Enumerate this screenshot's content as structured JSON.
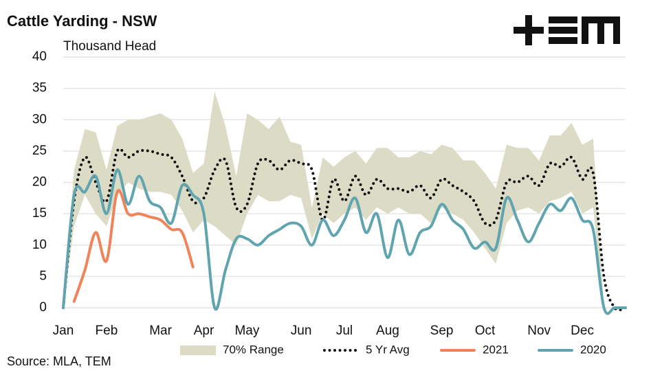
{
  "chart_data": {
    "type": "line",
    "title": "Cattle Yarding - NSW",
    "subtitle": "Thousand Head",
    "source": "Source: MLA, TEM",
    "categories": [
      "Jan",
      null,
      null,
      null,
      "Feb",
      null,
      null,
      null,
      null,
      "Mar",
      null,
      null,
      null,
      "Apr",
      null,
      null,
      null,
      "May",
      null,
      null,
      null,
      null,
      "Jun",
      null,
      null,
      null,
      "Jul",
      null,
      null,
      null,
      "Aug",
      null,
      null,
      null,
      null,
      "Sep",
      null,
      null,
      null,
      "Oct",
      null,
      null,
      null,
      null,
      "Nov",
      null,
      null,
      null,
      "Dec",
      null,
      null,
      null,
      null
    ],
    "ylim": [
      0,
      40
    ],
    "yticks": [
      0,
      5,
      10,
      15,
      20,
      25,
      30,
      35,
      40
    ],
    "grid": true,
    "legend": "bottom",
    "series": [
      {
        "name": "70% Range",
        "color": "#dcdcc6",
        "kind": "range",
        "upper": [
          0,
          22,
          28.5,
          28,
          22,
          29,
          30,
          30,
          30.5,
          31,
          30,
          27,
          21.5,
          23,
          34.5,
          29,
          21,
          31,
          30,
          28.5,
          30.5,
          26.5,
          26,
          16,
          24,
          22.5,
          24,
          25,
          23,
          25.5,
          25.5,
          24,
          24,
          25,
          24.5,
          26,
          25.5,
          23.5,
          23.5,
          21.5,
          19,
          26,
          25.5,
          25.5,
          23.5,
          27.5,
          27.5,
          29.5,
          26,
          27,
          0,
          0,
          0
        ],
        "lower": [
          0,
          13,
          18,
          15,
          13,
          18,
          20,
          19,
          18.5,
          18.5,
          18,
          15.5,
          12,
          14,
          13,
          11.5,
          10,
          15,
          18,
          17,
          17,
          18,
          17.5,
          11,
          15,
          13.5,
          15,
          16,
          14,
          16,
          15,
          16,
          15,
          15,
          13.5,
          16,
          15,
          14,
          12,
          9.5,
          7,
          13.5,
          15.5,
          16,
          15,
          17,
          17.5,
          18.5,
          15,
          16,
          0,
          0,
          0
        ]
      },
      {
        "name": "5 Yr Avg",
        "color": "#111111",
        "kind": "dotted",
        "values": [
          0,
          17,
          24,
          20,
          17,
          25,
          24,
          25,
          25,
          24.5,
          24,
          21,
          17,
          17.5,
          22,
          23.5,
          16,
          16.5,
          23,
          23.5,
          22,
          23.5,
          23,
          22,
          14,
          20.5,
          17,
          21,
          18,
          20.5,
          19,
          19,
          18.5,
          19.5,
          17.5,
          20.5,
          19.5,
          18.5,
          17,
          13.5,
          14,
          20,
          20,
          21,
          19.5,
          23,
          22.5,
          24,
          20.5,
          21.5,
          5,
          0,
          0
        ]
      },
      {
        "name": "2021",
        "color": "#f0835a",
        "kind": "line",
        "values": [
          null,
          1,
          6,
          12,
          7.5,
          18.5,
          15,
          15,
          14.5,
          14,
          12.5,
          12,
          6.5,
          null,
          null,
          null,
          null,
          null,
          null,
          null,
          null,
          null,
          null,
          null,
          null,
          null,
          null,
          null,
          null,
          null,
          null,
          null,
          null,
          null,
          null,
          null,
          null,
          null,
          null,
          null,
          null,
          null,
          null,
          null,
          null,
          null,
          null,
          null,
          null,
          null,
          null,
          null,
          null
        ]
      },
      {
        "name": "2020",
        "color": "#5fa4ae",
        "kind": "line",
        "values": [
          0,
          18,
          18.5,
          21,
          15,
          22,
          16.5,
          21,
          17,
          16,
          13.5,
          19.5,
          18,
          15,
          0,
          6,
          11,
          11,
          10,
          11.5,
          12.5,
          13.5,
          13,
          10,
          14,
          11.5,
          14,
          17.5,
          12,
          15,
          8,
          14,
          8.5,
          12,
          13,
          16.5,
          14,
          12.5,
          9.5,
          10.5,
          9.5,
          17.5,
          14,
          10.5,
          13.5,
          16.5,
          15.5,
          17.5,
          14,
          12.5,
          0,
          0,
          0
        ]
      }
    ]
  }
}
